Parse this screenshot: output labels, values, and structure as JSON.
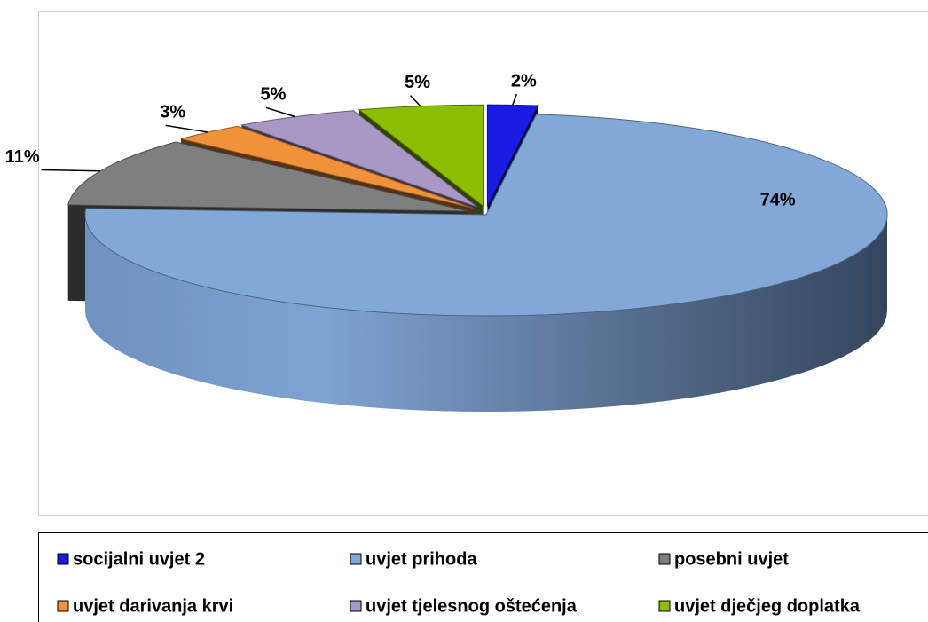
{
  "chart_data": {
    "type": "pie",
    "categories": [
      "socijalni uvjet 2",
      "uvjet prihoda",
      "posebni uvjet",
      "uvjet darivanja krvi",
      "uvjet tjelesnog oštećenja",
      "uvjet dječjeg doplatka"
    ],
    "values": [
      2,
      74,
      11,
      3,
      5,
      5
    ],
    "value_labels": [
      "2%",
      "74%",
      "11%",
      "3%",
      "5%",
      "5%"
    ],
    "colors": [
      "#1a1ae6",
      "#82a8d8",
      "#7f7f7f",
      "#f0923a",
      "#a898c6",
      "#8dbd00"
    ],
    "legend": "bottom"
  }
}
